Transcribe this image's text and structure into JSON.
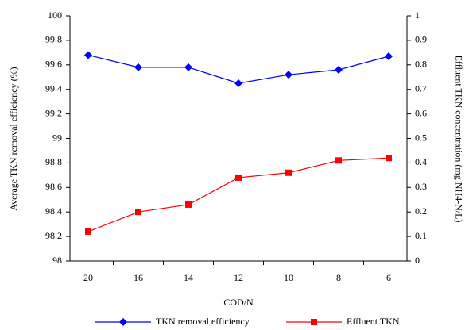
{
  "chart_data": {
    "type": "line",
    "categories": [
      "20",
      "16",
      "14",
      "12",
      "10",
      "8",
      "6"
    ],
    "xlabel": "COD/N",
    "ylabel": "Average TKN removal efficiency (%)",
    "y2label": "Effluent TKN concentration (mg NH4-N/L)",
    "ylim": [
      98,
      100
    ],
    "yticks": [
      98,
      98.2,
      98.4,
      98.6,
      98.8,
      99,
      99.2,
      99.4,
      99.6,
      99.8,
      100
    ],
    "y2lim": [
      0,
      1
    ],
    "y2ticks": [
      0,
      0.1,
      0.2,
      0.3,
      0.4,
      0.5,
      0.6,
      0.7,
      0.8,
      0.9,
      1
    ],
    "grid": false,
    "legend": "bottom",
    "series": [
      {
        "name": "TKN removal efficiency",
        "color": "#0000ff",
        "marker": "diamond",
        "values": [
          99.68,
          99.58,
          99.58,
          99.45,
          99.52,
          99.56,
          99.67
        ]
      },
      {
        "name": "Effluent TKN",
        "color": "#ff0000",
        "marker": "square",
        "axis": "y2",
        "values": [
          0.12,
          0.2,
          0.23,
          0.34,
          0.36,
          0.41,
          0.42
        ]
      }
    ]
  }
}
